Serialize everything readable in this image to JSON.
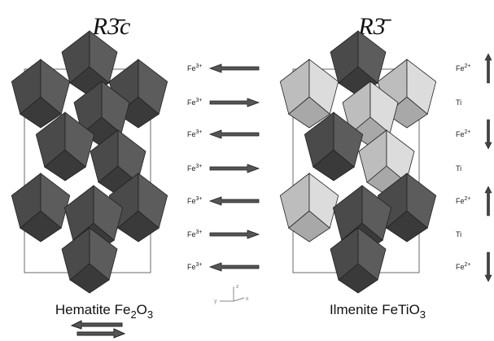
{
  "left": {
    "title": "R3̄c",
    "caption": [
      "Hematite Fe",
      "2",
      "O",
      "3"
    ],
    "ions": [
      {
        "symbol": "Fe",
        "charge": "3+"
      },
      {
        "symbol": "Fe",
        "charge": "3+"
      },
      {
        "symbol": "Fe",
        "charge": "3+"
      },
      {
        "symbol": "Fe",
        "charge": "3+"
      },
      {
        "symbol": "Fe",
        "charge": "3+"
      },
      {
        "symbol": "Fe",
        "charge": "3+"
      },
      {
        "symbol": "Fe",
        "charge": "3+"
      }
    ]
  },
  "right": {
    "title": "R3̄",
    "caption": [
      "Ilmenite FeTiO",
      "3"
    ],
    "ions": [
      {
        "symbol": "Fe",
        "charge": "2+"
      },
      {
        "symbol": "Ti"
      },
      {
        "symbol": "Fe",
        "charge": "2+"
      },
      {
        "symbol": "Ti"
      },
      {
        "symbol": "Fe",
        "charge": "2+"
      },
      {
        "symbol": "Ti"
      },
      {
        "symbol": "Fe",
        "charge": "2+"
      }
    ]
  },
  "axes": {
    "z": "z",
    "y": "y",
    "x": "x"
  }
}
